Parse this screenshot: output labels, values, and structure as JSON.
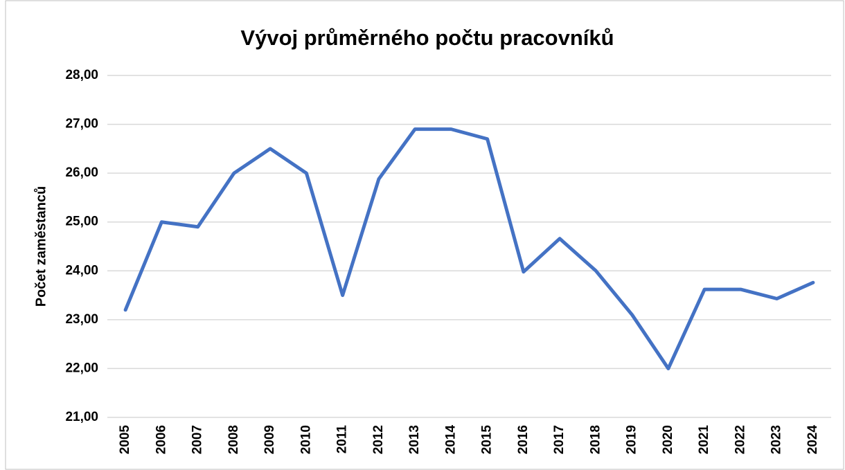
{
  "chart_data": {
    "type": "line",
    "title": "Vývoj průměrného počtu pracovníků",
    "y_label": "Počet zaměstanců",
    "categories": [
      "2005",
      "2006",
      "2007",
      "2008",
      "2009",
      "2010",
      "2011",
      "2012",
      "2013",
      "2014",
      "2015",
      "2016",
      "2017",
      "2018",
      "2019",
      "2020",
      "2021",
      "2022",
      "2023",
      "2024"
    ],
    "series": [
      {
        "name": "Počet zaměstanců",
        "color": "#4472c4",
        "values": [
          23.2,
          25.0,
          24.9,
          26.0,
          26.5,
          26.0,
          23.5,
          25.88,
          26.9,
          26.9,
          26.7,
          23.98,
          24.66,
          24.0,
          23.1,
          22.0,
          23.62,
          23.62,
          23.43,
          23.76
        ]
      }
    ],
    "ylim": [
      21,
      28
    ],
    "yticks": [
      {
        "value": 21,
        "label": "21,00"
      },
      {
        "value": 22,
        "label": "22,00"
      },
      {
        "value": 23,
        "label": "23,00"
      },
      {
        "value": 24,
        "label": "24,00"
      },
      {
        "value": 25,
        "label": "25,00"
      },
      {
        "value": 26,
        "label": "26,00"
      },
      {
        "value": 27,
        "label": "27,00"
      },
      {
        "value": 28,
        "label": "28,00"
      }
    ],
    "grid": true
  }
}
